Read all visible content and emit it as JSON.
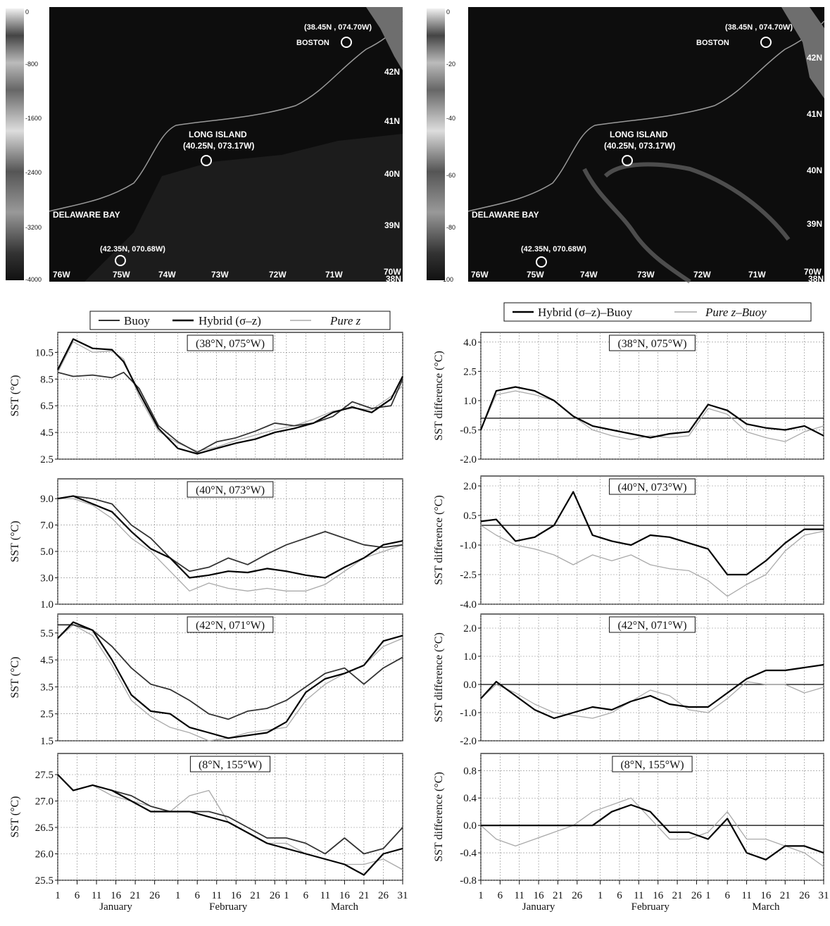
{
  "maps": [
    {
      "colorbar_ticks": [
        "0",
        "-800",
        "-1600",
        "-2400",
        "-3200",
        "-4000"
      ],
      "labels": {
        "boston_coord": "(38.45N , 074.70W)",
        "boston": "BOSTON",
        "long_island": "LONG ISLAND",
        "long_island_coord": "(40.25N, 073.17W)",
        "delaware": "DELAWARE BAY",
        "delaware_coord": "(42.35N, 070.68W)"
      },
      "lon_labels": [
        "76W",
        "75W",
        "74W",
        "73W",
        "72W",
        "71W",
        "70W"
      ],
      "lat_labels": [
        "42N",
        "41N",
        "40N",
        "39N",
        "38N"
      ]
    },
    {
      "colorbar_ticks": [
        "0",
        "-20",
        "-40",
        "-60",
        "-80",
        "-100"
      ],
      "labels": {
        "boston_coord": "(38.45N , 074.70W)",
        "boston": "BOSTON",
        "long_island": "LONG ISLAND",
        "long_island_coord": "(40.25N, 073.17W)",
        "delaware": "DELAWARE BAY",
        "delaware_coord": "(42.35N, 070.68W)"
      },
      "lon_labels": [
        "76W",
        "75W",
        "74W",
        "73W",
        "72W",
        "71W",
        "70W"
      ],
      "lat_labels": [
        "42N",
        "41N",
        "40N",
        "39N",
        "38N"
      ]
    }
  ],
  "legend_left": {
    "buoy": "Buoy",
    "hybrid": "Hybrid (σ–z)",
    "purez": "Pure z"
  },
  "legend_right": {
    "hybrid": "Hybrid (σ–z)–Buoy",
    "purez": "Pure z–Buoy"
  },
  "day_ticks": [
    "1",
    "6",
    "11",
    "16",
    "21",
    "26",
    "1",
    "6",
    "11",
    "16",
    "21",
    "26",
    "1",
    "6",
    "11",
    "16",
    "21",
    "26",
    "31"
  ],
  "months": [
    "January",
    "February",
    "March"
  ],
  "colors": {
    "buoy": "#333333",
    "hybrid": "#000000",
    "purez": "#aaaaaa"
  },
  "chart_data": [
    {
      "type": "line",
      "title": "(38°N, 075°W)",
      "ylabel": "SST (°C)",
      "ylim": [
        2.5,
        12.0
      ],
      "yticks": [
        "10.5",
        "8.5",
        "6.5",
        "4.5",
        "2.5"
      ],
      "ytick_values": [
        10.5,
        8.5,
        6.5,
        4.5,
        2.5
      ],
      "x": [
        1,
        5,
        10,
        15,
        18,
        22,
        27,
        32,
        37,
        42,
        47,
        52,
        57,
        62,
        67,
        72,
        77,
        82,
        87,
        90
      ],
      "series": [
        {
          "name": "Buoy",
          "values": [
            9.0,
            8.7,
            8.8,
            8.6,
            9.0,
            7.8,
            5.0,
            3.8,
            3.0,
            3.8,
            4.1,
            4.6,
            5.2,
            5.0,
            5.2,
            5.7,
            6.8,
            6.3,
            6.5,
            8.5
          ]
        },
        {
          "name": "Hybrid (σ–z)",
          "values": [
            9.2,
            11.5,
            10.8,
            10.7,
            9.8,
            7.5,
            4.8,
            3.3,
            2.9,
            3.3,
            3.7,
            4.0,
            4.5,
            4.8,
            5.2,
            6.0,
            6.4,
            6.0,
            7.0,
            8.7
          ]
        },
        {
          "name": "Pure z",
          "values": [
            9.0,
            11.3,
            10.5,
            10.6,
            10.0,
            7.2,
            4.6,
            3.7,
            3.1,
            3.4,
            3.9,
            4.3,
            4.7,
            5.0,
            5.5,
            6.1,
            6.3,
            6.2,
            7.2,
            8.0
          ]
        }
      ]
    },
    {
      "type": "line",
      "title": "(40°N, 073°W)",
      "ylabel": "SST (°C)",
      "ylim": [
        1.0,
        10.5
      ],
      "yticks": [
        "9.0",
        "7.0",
        "5.0",
        "3.0",
        "1.0"
      ],
      "ytick_values": [
        9.0,
        7.0,
        5.0,
        3.0,
        1.0
      ],
      "x": [
        1,
        5,
        10,
        15,
        20,
        25,
        30,
        35,
        40,
        45,
        50,
        55,
        60,
        65,
        70,
        75,
        80,
        85,
        90
      ],
      "series": [
        {
          "name": "Buoy",
          "values": [
            9.0,
            9.2,
            9.0,
            8.6,
            7.0,
            6.0,
            4.5,
            3.5,
            3.8,
            4.5,
            4.0,
            4.8,
            5.5,
            6.0,
            6.5,
            6.0,
            5.5,
            5.3,
            5.5
          ]
        },
        {
          "name": "Hybrid (σ–z)",
          "values": [
            9.0,
            9.2,
            8.6,
            8.0,
            6.5,
            5.2,
            4.5,
            3.0,
            3.2,
            3.5,
            3.4,
            3.7,
            3.5,
            3.2,
            3.0,
            3.8,
            4.5,
            5.5,
            5.8
          ]
        },
        {
          "name": "Pure z",
          "values": [
            9.0,
            9.0,
            8.5,
            7.5,
            6.0,
            5.0,
            3.5,
            2.0,
            2.6,
            2.2,
            2.0,
            2.2,
            2.0,
            2.0,
            2.5,
            3.5,
            4.5,
            5.0,
            5.5
          ]
        }
      ]
    },
    {
      "type": "line",
      "title": "(42°N, 071°W)",
      "ylabel": "SST (°C)",
      "ylim": [
        1.5,
        6.2
      ],
      "yticks": [
        "5.5",
        "4.5",
        "3.5",
        "2.5",
        "1.5"
      ],
      "ytick_values": [
        5.5,
        4.5,
        3.5,
        2.5,
        1.5
      ],
      "x": [
        1,
        5,
        10,
        15,
        20,
        25,
        30,
        35,
        40,
        45,
        50,
        55,
        60,
        65,
        70,
        75,
        80,
        85,
        90
      ],
      "series": [
        {
          "name": "Buoy",
          "values": [
            5.8,
            5.8,
            5.6,
            5.0,
            4.2,
            3.6,
            3.4,
            3.0,
            2.5,
            2.3,
            2.6,
            2.7,
            3.0,
            3.5,
            4.0,
            4.2,
            3.6,
            4.2,
            4.6
          ]
        },
        {
          "name": "Hybrid (σ–z)",
          "values": [
            5.3,
            5.9,
            5.6,
            4.5,
            3.2,
            2.6,
            2.5,
            2.0,
            1.8,
            1.6,
            1.7,
            1.8,
            2.2,
            3.3,
            3.8,
            4.0,
            4.3,
            5.2,
            5.4
          ]
        },
        {
          "name": "Pure z",
          "values": [
            5.3,
            5.8,
            5.4,
            4.3,
            3.0,
            2.4,
            2.0,
            1.8,
            1.5,
            1.6,
            1.8,
            1.9,
            2.0,
            3.0,
            3.6,
            4.0,
            4.3,
            5.0,
            5.3
          ]
        }
      ]
    },
    {
      "type": "line",
      "title": "(8°N, 155°W)",
      "ylabel": "SST (°C)",
      "ylim": [
        25.5,
        27.9
      ],
      "yticks": [
        "27.5",
        "27.0",
        "26.5",
        "26.0",
        "25.5"
      ],
      "ytick_values": [
        27.5,
        27.0,
        26.5,
        26.0,
        25.5
      ],
      "x": [
        1,
        5,
        10,
        15,
        20,
        25,
        30,
        35,
        40,
        45,
        50,
        55,
        60,
        65,
        70,
        75,
        80,
        85,
        90
      ],
      "series": [
        {
          "name": "Buoy",
          "values": [
            27.5,
            27.2,
            27.3,
            27.2,
            27.1,
            26.9,
            26.8,
            26.8,
            26.8,
            26.7,
            26.5,
            26.3,
            26.3,
            26.2,
            26.0,
            26.3,
            26.0,
            26.1,
            26.5
          ]
        },
        {
          "name": "Hybrid (σ–z)",
          "values": [
            27.5,
            27.2,
            27.3,
            27.2,
            27.0,
            26.8,
            26.8,
            26.8,
            26.7,
            26.6,
            26.4,
            26.2,
            26.1,
            26.0,
            25.9,
            25.8,
            25.6,
            26.0,
            26.1
          ]
        },
        {
          "name": "Pure z",
          "values": [
            27.5,
            27.2,
            27.3,
            27.1,
            27.0,
            26.9,
            26.8,
            27.1,
            27.2,
            26.6,
            26.4,
            26.2,
            26.2,
            26.0,
            25.9,
            25.8,
            25.8,
            25.9,
            25.7
          ]
        }
      ]
    },
    {
      "type": "line",
      "title": "(38°N, 075°W)",
      "ylabel": "SST difference (°C)",
      "ylim": [
        -2.0,
        4.5
      ],
      "yticks": [
        "4.0",
        "2.5",
        "1.0",
        "-0.5",
        "-2.0"
      ],
      "ytick_values": [
        4.0,
        2.5,
        1.0,
        -0.5,
        -2.0
      ],
      "zero": 0.1,
      "x": [
        1,
        5,
        10,
        15,
        20,
        25,
        30,
        35,
        40,
        45,
        50,
        55,
        60,
        65,
        70,
        75,
        80,
        85,
        90
      ],
      "series": [
        {
          "name": "Hybrid (σ–z)–Buoy",
          "values": [
            -0.5,
            1.5,
            1.7,
            1.5,
            1.0,
            0.2,
            -0.3,
            -0.5,
            -0.7,
            -0.9,
            -0.7,
            -0.6,
            0.8,
            0.5,
            -0.2,
            -0.4,
            -0.5,
            -0.3,
            -0.8
          ]
        },
        {
          "name": "Pure z–Buoy",
          "values": [
            -0.5,
            1.3,
            1.5,
            1.3,
            1.0,
            0.2,
            -0.5,
            -0.8,
            -1.0,
            -0.8,
            -0.9,
            -0.8,
            0.6,
            0.3,
            -0.6,
            -0.9,
            -1.1,
            -0.6,
            -0.3
          ]
        }
      ]
    },
    {
      "type": "line",
      "title": "(40°N, 073°W)",
      "ylabel": "SST difference (°C)",
      "ylim": [
        -4.0,
        2.5
      ],
      "yticks": [
        "2.0",
        "0.5",
        "-1.0",
        "-2.5",
        "-4.0"
      ],
      "ytick_values": [
        2.0,
        0.5,
        -1.0,
        -2.5,
        -4.0
      ],
      "zero": 0.0,
      "x": [
        1,
        5,
        10,
        15,
        20,
        25,
        30,
        35,
        40,
        45,
        50,
        55,
        60,
        65,
        70,
        75,
        80,
        85,
        90
      ],
      "series": [
        {
          "name": "Hybrid (σ–z)–Buoy",
          "values": [
            0.2,
            0.3,
            -0.8,
            -0.6,
            0.0,
            1.7,
            -0.5,
            -0.8,
            -1.0,
            -0.5,
            -0.6,
            -0.9,
            -1.2,
            -2.5,
            -2.5,
            -1.8,
            -0.9,
            -0.2,
            -0.2
          ]
        },
        {
          "name": "Pure z–Buoy",
          "values": [
            0.0,
            -0.5,
            -1.0,
            -1.2,
            -1.5,
            -2.0,
            -1.5,
            -1.8,
            -1.5,
            -2.0,
            -2.2,
            -2.3,
            -2.8,
            -3.6,
            -3.0,
            -2.5,
            -1.3,
            -0.5,
            -0.3
          ]
        }
      ]
    },
    {
      "type": "line",
      "title": "(42°N, 071°W)",
      "ylabel": "SST difference (°C)",
      "ylim": [
        -2.0,
        2.5
      ],
      "yticks": [
        "2.0",
        "1.0",
        "0.0",
        "-1.0",
        "-2.0"
      ],
      "ytick_values": [
        2.0,
        1.0,
        0.0,
        -1.0,
        -2.0
      ],
      "zero": 0.0,
      "x": [
        1,
        5,
        10,
        15,
        20,
        25,
        30,
        35,
        40,
        45,
        50,
        55,
        60,
        65,
        70,
        75,
        80,
        85,
        90
      ],
      "series": [
        {
          "name": "Hybrid (σ–z)–Buoy",
          "values": [
            -0.5,
            0.1,
            -0.4,
            -0.9,
            -1.2,
            -1.0,
            -0.8,
            -0.9,
            -0.6,
            -0.4,
            -0.7,
            -0.8,
            -0.8,
            -0.3,
            0.2,
            0.5,
            0.5,
            0.6,
            0.7
          ]
        },
        {
          "name": "Pure z–Buoy",
          "values": [
            -0.5,
            0.0,
            -0.3,
            -0.7,
            -1.0,
            -1.1,
            -1.2,
            -1.0,
            -0.6,
            -0.2,
            -0.4,
            -0.9,
            -1.0,
            -0.5,
            0.1,
            0.0,
            0.0,
            -0.3,
            -0.1
          ]
        }
      ]
    },
    {
      "type": "line",
      "title": "(8°N, 155°W)",
      "ylabel": "SST difference (°C)",
      "ylim": [
        -0.8,
        1.05
      ],
      "yticks": [
        "0.8",
        "0.4",
        "0.0",
        "-0.4",
        "-0.8"
      ],
      "ytick_values": [
        0.8,
        0.4,
        0.0,
        -0.4,
        -0.8
      ],
      "zero": 0.0,
      "x": [
        1,
        5,
        10,
        15,
        20,
        25,
        30,
        35,
        40,
        45,
        50,
        55,
        60,
        65,
        70,
        75,
        80,
        85,
        90
      ],
      "series": [
        {
          "name": "Hybrid (σ–z)–Buoy",
          "values": [
            0.0,
            0.0,
            0.0,
            0.0,
            0.0,
            0.0,
            0.0,
            0.2,
            0.3,
            0.2,
            -0.1,
            -0.1,
            -0.2,
            0.1,
            -0.4,
            -0.5,
            -0.3,
            -0.3,
            -0.4
          ]
        },
        {
          "name": "Pure z–Buoy",
          "values": [
            0.0,
            -0.2,
            -0.3,
            -0.2,
            -0.1,
            0.0,
            0.2,
            0.3,
            0.4,
            0.1,
            -0.2,
            -0.2,
            -0.1,
            0.2,
            -0.2,
            -0.2,
            -0.3,
            -0.4,
            -0.6
          ]
        }
      ]
    }
  ]
}
